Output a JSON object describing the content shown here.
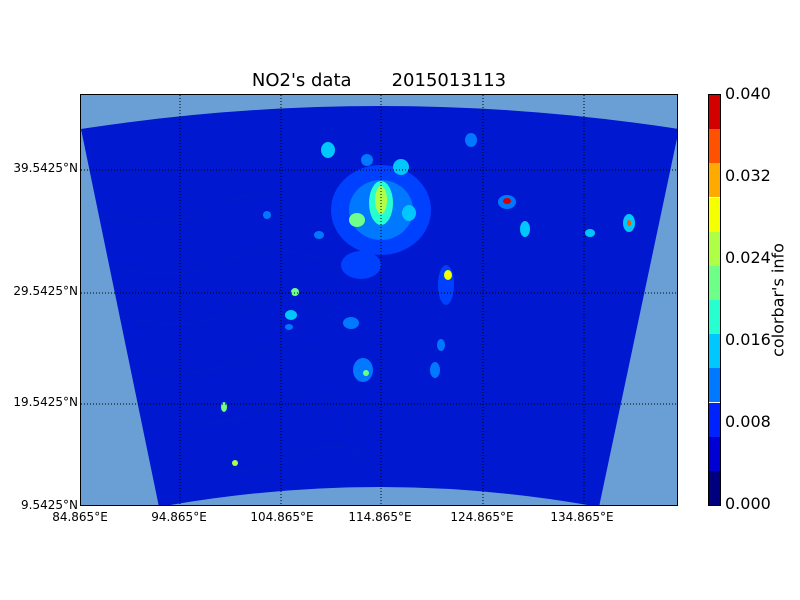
{
  "title": "NO2's data       2015013113",
  "map": {
    "lat_labels": [
      "39.5425°N",
      "29.5425°N",
      "19.5425°N",
      "9.5425°N"
    ],
    "lat_values": [
      39.5425,
      29.5425,
      19.5425,
      9.5425
    ],
    "lon_labels": [
      "84.865°E",
      "94.865°E",
      "104.865°E",
      "114.865°E",
      "124.865°E",
      "134.865°E"
    ],
    "lon_values": [
      84.865,
      94.865,
      104.865,
      114.865,
      124.865,
      134.865
    ],
    "field_color": "#0018d0",
    "background_color": "#6a9fd6",
    "gridlines": "dotted"
  },
  "colorbar": {
    "label": "colorbar's info",
    "ticks": [
      "0.000",
      "0.008",
      "0.016",
      "0.024",
      "0.032",
      "0.040"
    ],
    "range": [
      0.0,
      0.04
    ],
    "colors": [
      "#00007f",
      "#0000d4",
      "#0022ff",
      "#0078ff",
      "#00c8ff",
      "#27ffd0",
      "#6eff89",
      "#b0ff47",
      "#f5ff00",
      "#ffaa00",
      "#ff5200",
      "#d40000"
    ]
  }
}
